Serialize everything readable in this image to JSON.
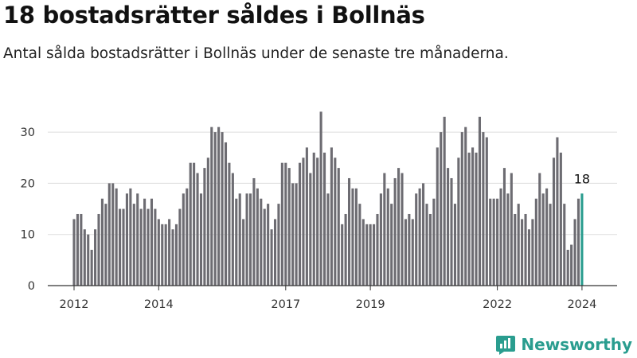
{
  "header": {
    "title": "18 bostadsrätter såldes i Bollnäs",
    "subtitle": "Antal sålda bostadsrätter i Bollnäs under de senaste tre månaderna."
  },
  "brand": {
    "name": "Newsworthy",
    "icon": "newsworthy-logo-icon",
    "color": "#2a9d8f"
  },
  "chart_data": {
    "type": "bar",
    "title": "18 bostadsrätter såldes i Bollnäs",
    "subtitle": "Antal sålda bostadsrätter i Bollnäs under de senaste tre månaderna.",
    "xlabel": "",
    "ylabel": "",
    "x_start": "2012-01",
    "x_interval": "month",
    "x_ticks": [
      "2012",
      "2014",
      "2017",
      "2019",
      "2022",
      "2024"
    ],
    "y_ticks": [
      0,
      10,
      20,
      30
    ],
    "ylim": [
      0,
      35
    ],
    "grid": true,
    "bar_color": "#6d6c72",
    "highlight_color": "#2a9d8f",
    "highlight_label": "18",
    "values": [
      13,
      14,
      14,
      11,
      10,
      7,
      11,
      14,
      17,
      16,
      20,
      20,
      19,
      15,
      15,
      18,
      19,
      16,
      18,
      15,
      17,
      15,
      17,
      15,
      13,
      12,
      12,
      13,
      11,
      12,
      15,
      18,
      19,
      24,
      24,
      22,
      18,
      23,
      25,
      31,
      30,
      31,
      30,
      28,
      24,
      22,
      17,
      18,
      13,
      18,
      18,
      21,
      19,
      17,
      15,
      16,
      11,
      13,
      16,
      24,
      24,
      23,
      20,
      20,
      24,
      25,
      27,
      22,
      26,
      25,
      34,
      26,
      18,
      27,
      25,
      23,
      12,
      14,
      21,
      19,
      19,
      16,
      13,
      12,
      12,
      12,
      14,
      18,
      22,
      19,
      16,
      21,
      23,
      22,
      13,
      14,
      13,
      18,
      19,
      20,
      16,
      14,
      17,
      27,
      30,
      33,
      23,
      21,
      16,
      25,
      30,
      31,
      26,
      27,
      26,
      33,
      30,
      29,
      17,
      17,
      17,
      19,
      23,
      18,
      22,
      14,
      16,
      13,
      14,
      11,
      13,
      17,
      22,
      18,
      19,
      16,
      25,
      29,
      26,
      16,
      7,
      8,
      13,
      17,
      18
    ]
  }
}
